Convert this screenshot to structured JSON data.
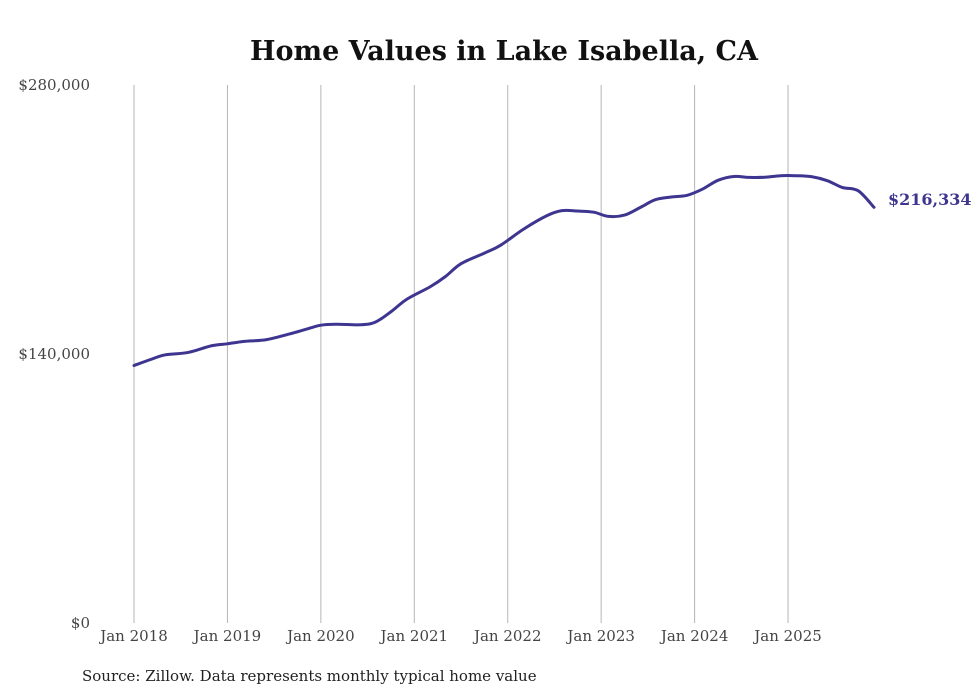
{
  "chart_data": {
    "type": "line",
    "title": "Home Values in Lake Isabella, CA",
    "xlabel": "",
    "ylabel": "",
    "ylim": [
      0,
      280000
    ],
    "xlim": [
      2018.0,
      2025.92
    ],
    "y_ticks": [
      {
        "value": 0,
        "label": "$0"
      },
      {
        "value": 140000,
        "label": "$140,000"
      },
      {
        "value": 280000,
        "label": "$280,000"
      }
    ],
    "x_ticks": [
      {
        "value": 2018,
        "label": "Jan 2018"
      },
      {
        "value": 2019,
        "label": "Jan 2019"
      },
      {
        "value": 2020,
        "label": "Jan 2020"
      },
      {
        "value": 2021,
        "label": "Jan 2021"
      },
      {
        "value": 2022,
        "label": "Jan 2022"
      },
      {
        "value": 2023,
        "label": "Jan 2023"
      },
      {
        "value": 2024,
        "label": "Jan 2024"
      },
      {
        "value": 2025,
        "label": "Jan 2025"
      }
    ],
    "vertical_gridlines": true,
    "series": [
      {
        "name": "Typical home value",
        "color": "#3d3590",
        "x": [
          2018.0,
          2018.17,
          2018.33,
          2018.58,
          2018.83,
          2019.0,
          2019.17,
          2019.42,
          2019.67,
          2019.83,
          2020.0,
          2020.17,
          2020.42,
          2020.58,
          2020.75,
          2020.92,
          2021.17,
          2021.33,
          2021.5,
          2021.75,
          2021.92,
          2022.17,
          2022.42,
          2022.58,
          2022.75,
          2022.92,
          2023.08,
          2023.25,
          2023.42,
          2023.58,
          2023.75,
          2023.92,
          2024.08,
          2024.25,
          2024.42,
          2024.58,
          2024.75,
          2024.92,
          2025.08,
          2025.25,
          2025.42,
          2025.58,
          2025.75,
          2025.92
        ],
        "values": [
          134000,
          137000,
          139500,
          140800,
          144300,
          145300,
          146500,
          147500,
          150500,
          152700,
          155000,
          155500,
          155200,
          156500,
          162000,
          168500,
          175000,
          180200,
          187000,
          192500,
          196500,
          205000,
          212000,
          214600,
          214400,
          213800,
          211600,
          212300,
          216300,
          220300,
          221700,
          222600,
          225700,
          230400,
          232400,
          231900,
          232000,
          232800,
          232800,
          232300,
          230200,
          226700,
          225000,
          216334
        ]
      }
    ],
    "end_label": "$216,334",
    "source": "Source: Zillow. Data represents monthly typical home value"
  }
}
